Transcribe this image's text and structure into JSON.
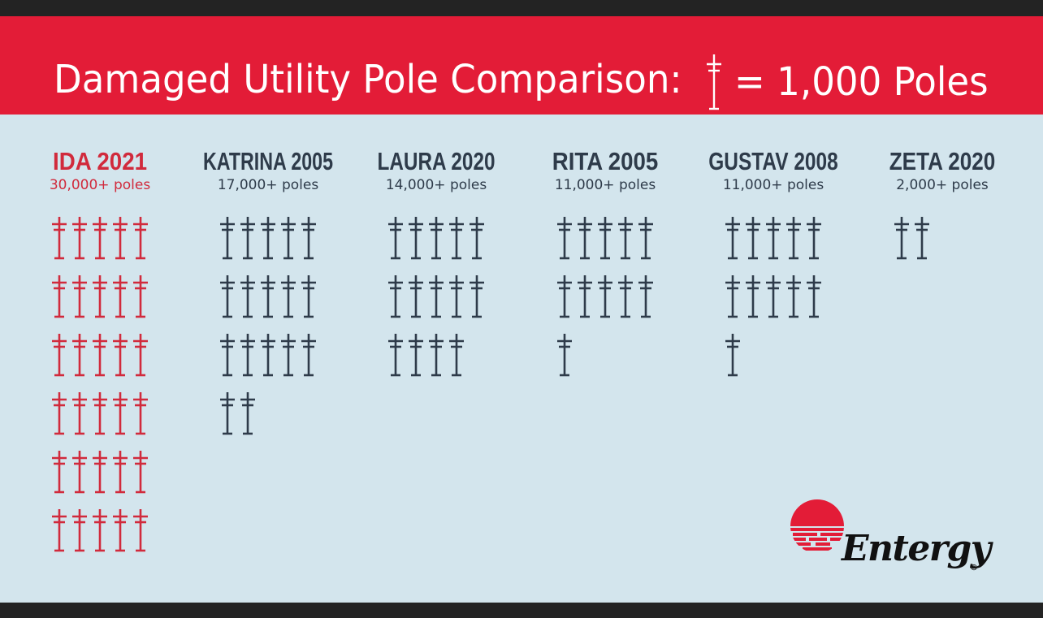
{
  "header": {
    "title": "Damaged Utility Pole Comparison:",
    "legend_text": "= 1,000 Poles",
    "legend_icon": "utility-pole-icon"
  },
  "colors": {
    "banner": "#e31c37",
    "background": "#d3e5ed",
    "highlight": "#d12a3c",
    "default": "#2e3b4a",
    "text_white": "#ffffff"
  },
  "chart_data": {
    "type": "pictograph",
    "unit_value": 1000,
    "unit_label": "Poles",
    "icons_per_row": 5,
    "series": [
      {
        "name": "IDA 2021",
        "label": "30,000+ poles",
        "value": 30000,
        "icons": 30,
        "highlight": true
      },
      {
        "name": "KATRINA 2005",
        "label": "17,000+ poles",
        "value": 17000,
        "icons": 17,
        "highlight": false
      },
      {
        "name": "LAURA 2020",
        "label": "14,000+ poles",
        "value": 14000,
        "icons": 14,
        "highlight": false
      },
      {
        "name": "RITA 2005",
        "label": "11,000+ poles",
        "value": 11000,
        "icons": 11,
        "highlight": false
      },
      {
        "name": "GUSTAV 2008",
        "label": "11,000+ poles",
        "value": 11000,
        "icons": 11,
        "highlight": false
      },
      {
        "name": "ZETA 2020",
        "label": "2,000+ poles",
        "value": 2000,
        "icons": 2,
        "highlight": false
      }
    ]
  },
  "logo": {
    "name": "Entergy",
    "registered": "®"
  }
}
